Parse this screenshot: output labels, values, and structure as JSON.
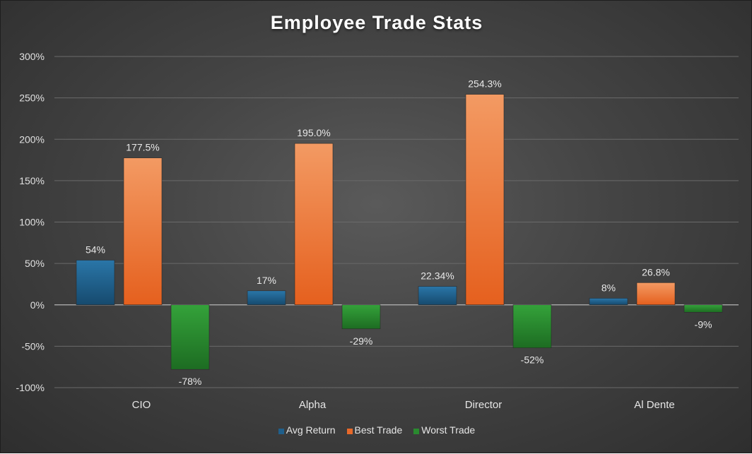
{
  "chart_data": {
    "type": "bar",
    "title": "Employee Trade Stats",
    "categories": [
      "CIO",
      "Alpha",
      "Director",
      "Al Dente"
    ],
    "series": [
      {
        "name": "Avg Return",
        "values": [
          54,
          17,
          22.34,
          8
        ],
        "labels": [
          "54%",
          "17%",
          "22.34%",
          "8%"
        ],
        "color": "#1f5f8b"
      },
      {
        "name": "Best Trade",
        "values": [
          177.5,
          195.0,
          254.3,
          26.8
        ],
        "labels": [
          "177.5%",
          "195.0%",
          "254.3%",
          "26.8%"
        ],
        "color": "#e8692a"
      },
      {
        "name": "Worst Trade",
        "values": [
          -78,
          -29,
          -52,
          -9
        ],
        "labels": [
          "-78%",
          "-29%",
          "-52%",
          "-9%"
        ],
        "color": "#2a8a2f"
      }
    ],
    "ylim": [
      -100,
      300
    ],
    "yticks": [
      "-100%",
      "-50%",
      "0%",
      "50%",
      "100%",
      "150%",
      "200%",
      "250%",
      "300%"
    ],
    "grid": true,
    "legend": "bottom"
  }
}
